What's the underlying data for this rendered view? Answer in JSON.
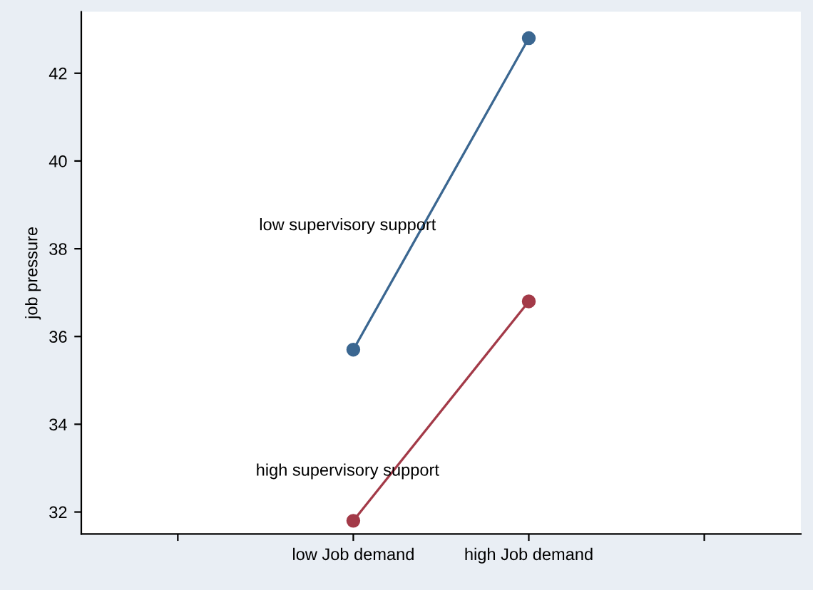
{
  "chart_data": {
    "type": "line",
    "ylabel": "job pressure",
    "categories": [
      null,
      "low Job demand",
      "high Job demand",
      null
    ],
    "series": [
      {
        "color": "#3b6791",
        "values": [
          null,
          35.7,
          42.8,
          null
        ]
      },
      {
        "color": "#a33a48",
        "values": [
          null,
          31.8,
          36.8,
          null
        ]
      }
    ],
    "annotations": [
      "low supervisory support",
      "high supervisory support"
    ],
    "ylim": [
      31.5,
      43.4
    ],
    "yticks": [
      32,
      34,
      36,
      38,
      40,
      42
    ],
    "marker": "circle",
    "line_style": "solid",
    "grid": false,
    "legend": false
  }
}
